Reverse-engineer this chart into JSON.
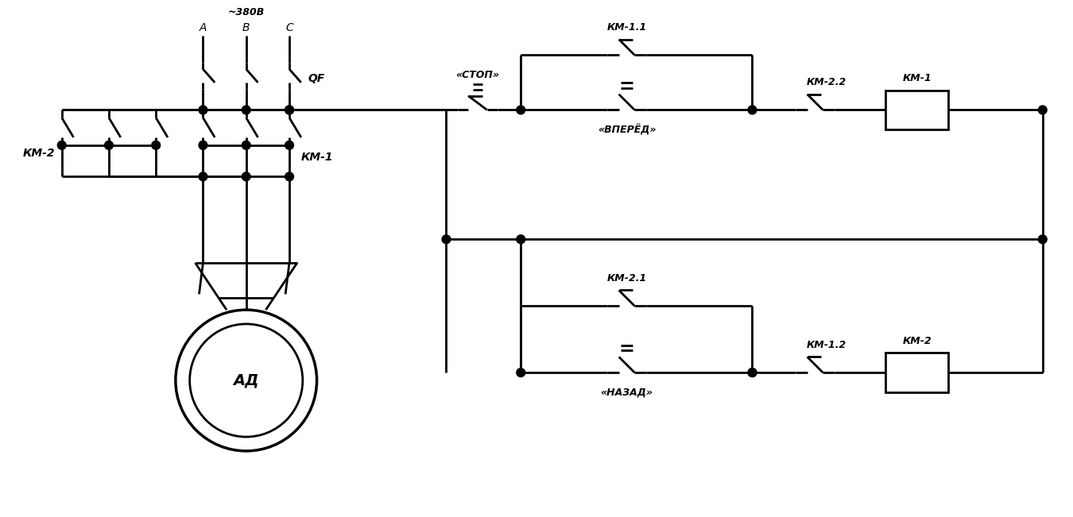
{
  "bg_color": "#ffffff",
  "lc": "#000000",
  "lw": 2.0,
  "figsize": [
    13.5,
    6.51
  ],
  "dpi": 100,
  "xlim": [
    0,
    135
  ],
  "ylim": [
    0,
    65.1
  ]
}
